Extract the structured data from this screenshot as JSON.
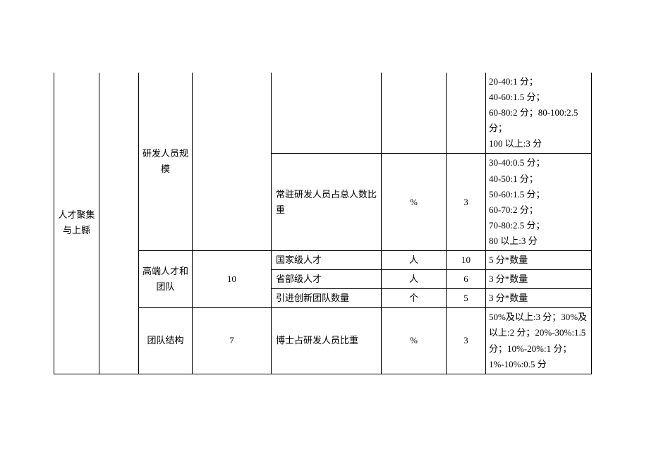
{
  "table": {
    "category": "人才聚集与上縣",
    "sections": [
      {
        "name": "研发人员规模",
        "rows": [
          {
            "indicator": "",
            "unit": "",
            "score": "",
            "criteria": "20-40:1 分；\n40-60:1.5 分；\n60-80:2 分；80-100:2.5 分；\n100 以上:3 分"
          },
          {
            "indicator": "常驻研发人员占总人数比重",
            "unit": "%",
            "score": "3",
            "criteria": "30-40:0.5 分；\n40-50:1 分；\n50-60:1.5 分；\n60-70:2 分；\n70-80:2.5 分；\n80 以上:3 分"
          }
        ]
      },
      {
        "name": "高端人才和团队",
        "weight": "10",
        "rows": [
          {
            "indicator": "国家级人才",
            "unit": "人",
            "score": "10",
            "criteria": "5 分*数量"
          },
          {
            "indicator": "省部级人才",
            "unit": "人",
            "score": "6",
            "criteria": "3 分*数量"
          },
          {
            "indicator": "引进创新团队数量",
            "unit": "个",
            "score": "5",
            "criteria": "3 分*数量"
          }
        ]
      },
      {
        "name": "团队结构",
        "weight": "7",
        "rows": [
          {
            "indicator": "博士占研发人员比重",
            "unit": "%",
            "score": "3",
            "criteria": "50%及以上:3 分；30%及以上:2 分；20%-30%:1.5 分；10%-20%:1 分；1%-10%:0.5 分"
          }
        ]
      }
    ]
  }
}
